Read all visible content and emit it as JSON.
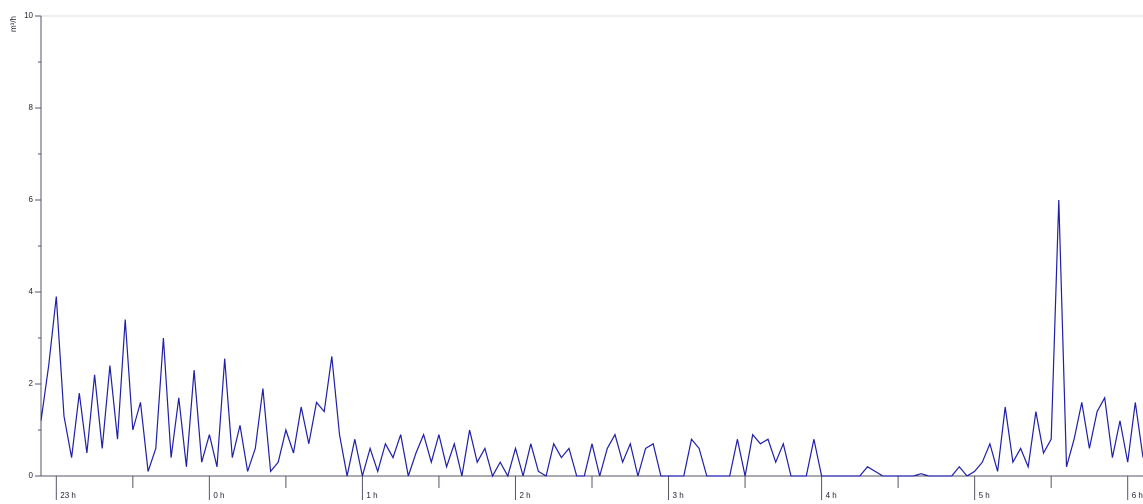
{
  "chart_data": {
    "type": "line",
    "y_label": "m³/h",
    "x": [
      22.9,
      22.95,
      23.0,
      23.05,
      23.1,
      23.15,
      23.2,
      23.25,
      23.3,
      23.35,
      23.4,
      23.45,
      23.5,
      23.55,
      23.6,
      23.65,
      23.7,
      23.75,
      23.8,
      23.85,
      23.9,
      23.95,
      24.0,
      24.05,
      24.1,
      24.15,
      24.2,
      24.25,
      24.3,
      24.35,
      24.4,
      24.45,
      24.5,
      24.55,
      24.6,
      24.65,
      24.7,
      24.75,
      24.8,
      24.85,
      24.9,
      24.95,
      25.0,
      25.05,
      25.1,
      25.15,
      25.2,
      25.25,
      25.3,
      25.35,
      25.4,
      25.45,
      25.5,
      25.55,
      25.6,
      25.65,
      25.7,
      25.75,
      25.8,
      25.85,
      25.9,
      25.95,
      26.0,
      26.05,
      26.1,
      26.15,
      26.2,
      26.25,
      26.3,
      26.35,
      26.4,
      26.45,
      26.5,
      26.55,
      26.6,
      26.65,
      26.7,
      26.75,
      26.8,
      26.85,
      26.9,
      26.95,
      27.0,
      27.05,
      27.1,
      27.15,
      27.2,
      27.25,
      27.3,
      27.35,
      27.4,
      27.45,
      27.5,
      27.55,
      27.6,
      27.65,
      27.7,
      27.75,
      27.8,
      27.85,
      27.9,
      27.95,
      28.0,
      28.05,
      28.1,
      28.15,
      28.2,
      28.25,
      28.3,
      28.35,
      28.4,
      28.45,
      28.5,
      28.55,
      28.6,
      28.65,
      28.7,
      28.75,
      28.8,
      28.85,
      28.9,
      28.95,
      29.0,
      29.05,
      29.1,
      29.15,
      29.2,
      29.25,
      29.3,
      29.35,
      29.4,
      29.45,
      29.5,
      29.55,
      29.6,
      29.65,
      29.7,
      29.75,
      29.8,
      29.85,
      29.9,
      29.95,
      30.0,
      30.05,
      30.1
    ],
    "series": [
      {
        "color": "#1f1fa8",
        "values": [
          1.2,
          2.4,
          3.9,
          1.3,
          0.4,
          1.8,
          0.5,
          2.2,
          0.6,
          2.4,
          0.8,
          3.4,
          1.0,
          1.6,
          0.1,
          0.6,
          3.0,
          0.4,
          1.7,
          0.2,
          2.3,
          0.3,
          0.9,
          0.2,
          2.55,
          0.4,
          1.1,
          0.1,
          0.6,
          1.9,
          0.1,
          0.3,
          1.0,
          0.5,
          1.5,
          0.7,
          1.6,
          1.4,
          2.6,
          0.9,
          0,
          0.8,
          0,
          0.6,
          0.1,
          0.7,
          0.4,
          0.9,
          0,
          0.5,
          0.9,
          0.3,
          0.9,
          0.2,
          0.7,
          0,
          1.0,
          0.3,
          0.6,
          0,
          0.3,
          0,
          0.6,
          0,
          0.7,
          0.1,
          0,
          0.7,
          0.4,
          0.6,
          0,
          0,
          0.7,
          0,
          0.6,
          0.9,
          0.3,
          0.7,
          0,
          0.6,
          0.7,
          0,
          0,
          0,
          0,
          0.8,
          0.6,
          0,
          0,
          0,
          0,
          0.8,
          0,
          0.9,
          0.7,
          0.8,
          0.3,
          0.7,
          0,
          0,
          0,
          0.8,
          0,
          0,
          0,
          0,
          0,
          0,
          0.2,
          0.1,
          0,
          0,
          0,
          0,
          0,
          0.05,
          0,
          0,
          0,
          0,
          0.2,
          0,
          0.1,
          0.3,
          0.7,
          0.1,
          1.5,
          0.3,
          0.6,
          0.2,
          1.4,
          0.5,
          0.8,
          6.0,
          0.2,
          0.8,
          1.6,
          0.6,
          1.4,
          1.7,
          0.4,
          1.2,
          0.3,
          1.6,
          0.4
        ]
      }
    ],
    "xlim": [
      22.9,
      30.1
    ],
    "xticks": [
      {
        "value": 23,
        "label": "23 h"
      },
      {
        "value": 24,
        "label": "0 h"
      },
      {
        "value": 25,
        "label": "1 h"
      },
      {
        "value": 26,
        "label": "2 h"
      },
      {
        "value": 27,
        "label": "3 h"
      },
      {
        "value": 28,
        "label": "4 h"
      },
      {
        "value": 29,
        "label": "5 h"
      },
      {
        "value": 30,
        "label": "6 h"
      }
    ],
    "ylim": [
      0,
      10
    ],
    "yticks": [
      0,
      2,
      4,
      6,
      8,
      10
    ]
  }
}
